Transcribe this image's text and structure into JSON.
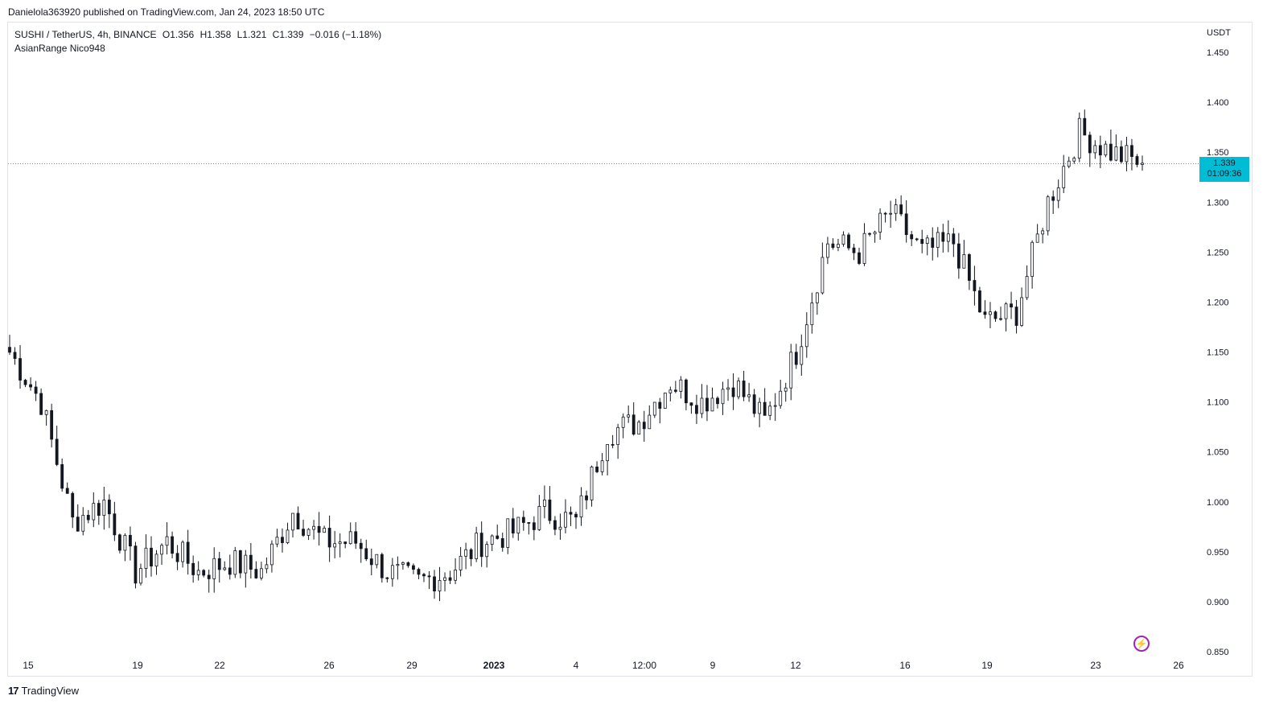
{
  "header": {
    "publish_line": "Danielola363920 published on TradingView.com, Jan 24, 2023 18:50 UTC"
  },
  "legend": {
    "symbol": "SUSHI / TetherUS, 4h, BINANCE",
    "open": "O1.356",
    "high": "H1.358",
    "low": "L1.321",
    "close": "C1.339",
    "change": "−0.016 (−1.18%)",
    "indicator": "AsianRange Nico948"
  },
  "price_tag": {
    "price": "1.339",
    "countdown": "01:09:36"
  },
  "footer": {
    "brand": "TradingView"
  },
  "colors": {
    "candle": "#131722",
    "last_price_line": "#00bcd4",
    "price_tag_bg": "#00bcd4",
    "grid_border": "#e0e3eb",
    "bolt": "#9c27b0"
  },
  "icons": [
    "tradingview-logo-icon",
    "lightning-icon"
  ],
  "chart_data": {
    "type": "candlestick",
    "title": "SUSHI / TetherUS, 4h, BINANCE",
    "y_unit": "USDT",
    "y_ticks": [
      "1.450",
      "1.400",
      "1.350",
      "1.300",
      "1.250",
      "1.200",
      "1.150",
      "1.100",
      "1.050",
      "1.000",
      "0.950",
      "0.900",
      "0.850"
    ],
    "ylim": [
      0.85,
      1.45
    ],
    "x_ticks": [
      "15",
      "19",
      "22",
      "26",
      "29",
      "2023",
      "4",
      "12:00",
      "9",
      "12",
      "16",
      "19",
      "23",
      "26"
    ],
    "last_price": 1.339,
    "grid": false,
    "close_anchors": [
      {
        "x": "15",
        "close": 1.15
      },
      {
        "x": "17",
        "close": 1.1
      },
      {
        "x": "18",
        "close": 0.98
      },
      {
        "x": "19",
        "close": 1.0
      },
      {
        "x": "20",
        "close": 0.93
      },
      {
        "x": "21",
        "close": 0.96
      },
      {
        "x": "22",
        "close": 0.93
      },
      {
        "x": "24",
        "close": 0.94
      },
      {
        "x": "26",
        "close": 0.93
      },
      {
        "x": "27",
        "close": 0.99
      },
      {
        "x": "28",
        "close": 0.96
      },
      {
        "x": "29",
        "close": 0.96
      },
      {
        "x": "30",
        "close": 0.93
      },
      {
        "x": "31",
        "close": 0.92
      },
      {
        "x": "2023",
        "close": 0.93
      },
      {
        "x": "3",
        "close": 0.96
      },
      {
        "x": "4",
        "close": 0.97
      },
      {
        "x": "5",
        "close": 0.99
      },
      {
        "x": "6",
        "close": 0.98
      },
      {
        "x": "7",
        "close": 1.07
      },
      {
        "x": "8",
        "close": 1.08
      },
      {
        "x": "9",
        "close": 1.12
      },
      {
        "x": "10",
        "close": 1.1
      },
      {
        "x": "11",
        "close": 1.12
      },
      {
        "x": "12",
        "close": 1.08
      },
      {
        "x": "13",
        "close": 1.15
      },
      {
        "x": "14",
        "close": 1.26
      },
      {
        "x": "15",
        "close": 1.25
      },
      {
        "x": "16",
        "close": 1.29
      },
      {
        "x": "17",
        "close": 1.25
      },
      {
        "x": "18",
        "close": 1.26
      },
      {
        "x": "19",
        "close": 1.18
      },
      {
        "x": "20",
        "close": 1.19
      },
      {
        "x": "21",
        "close": 1.3
      },
      {
        "x": "22",
        "close": 1.37
      },
      {
        "x": "23",
        "close": 1.35
      },
      {
        "x": "24",
        "close": 1.339
      }
    ]
  }
}
